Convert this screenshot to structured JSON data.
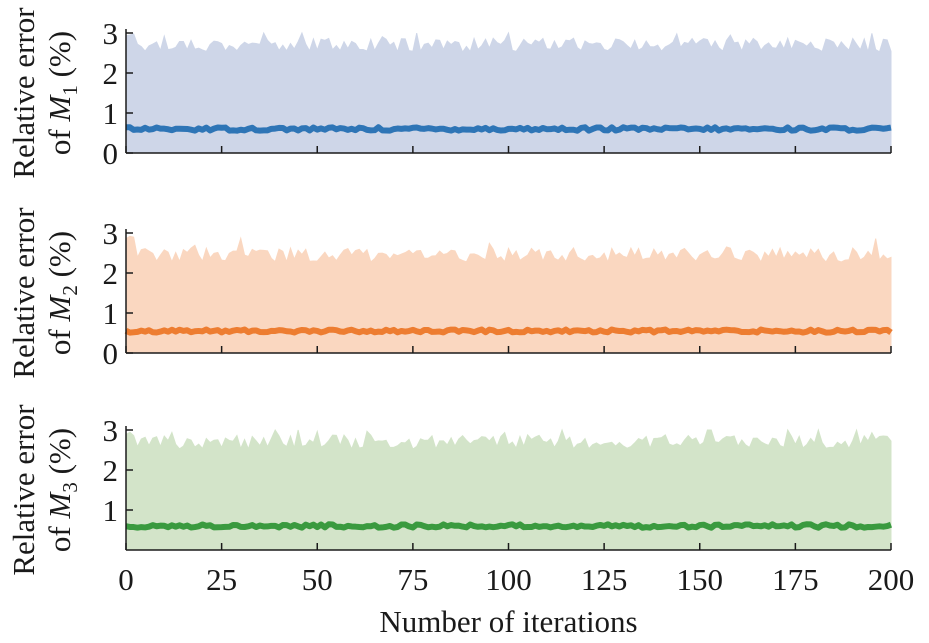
{
  "chart_data": [
    {
      "type": "line",
      "panel": 1,
      "ylabel": {
        "line1": "Relative error",
        "prefix": "of ",
        "symbol": "M",
        "subscript": "1",
        "suffix": " (%)"
      },
      "xlim": [
        0,
        200
      ],
      "ylim": [
        0,
        3
      ],
      "yticks": [
        0,
        1,
        2,
        3
      ],
      "grid": false,
      "colors": {
        "line": "#2e75b6",
        "band": "#ced6e8"
      },
      "series": [
        {
          "kind": "band",
          "lower": 0,
          "upper_mean": 2.7,
          "upper_min": 2.4,
          "upper_max": 3.0
        },
        {
          "kind": "line",
          "mean": 0.6,
          "min": 0.55,
          "max": 0.66
        }
      ]
    },
    {
      "type": "line",
      "panel": 2,
      "ylabel": {
        "line1": "Relative error",
        "prefix": "of ",
        "symbol": "M",
        "subscript": "2",
        "suffix": " (%)"
      },
      "xlim": [
        0,
        200
      ],
      "ylim": [
        0,
        3
      ],
      "yticks": [
        0,
        1,
        2,
        3
      ],
      "grid": false,
      "colors": {
        "line": "#ed7d31",
        "band": "#fad7c0"
      },
      "series": [
        {
          "kind": "band",
          "lower": 0,
          "upper_mean": 2.45,
          "upper_min": 2.25,
          "upper_max": 2.95
        },
        {
          "kind": "line",
          "mean": 0.55,
          "min": 0.5,
          "max": 0.6
        }
      ]
    },
    {
      "type": "line",
      "panel": 3,
      "ylabel": {
        "line1": "Relative error",
        "prefix": "of ",
        "symbol": "M",
        "subscript": "3",
        "suffix": " (%)"
      },
      "xlim": [
        0,
        200
      ],
      "ylim": [
        0,
        3
      ],
      "yticks": [
        1,
        2,
        3
      ],
      "xticks": [
        0,
        25,
        50,
        75,
        100,
        125,
        150,
        175,
        200
      ],
      "xlabel": "Number of iterations",
      "grid": false,
      "colors": {
        "line": "#3a9a3f",
        "band": "#d3e4c9"
      },
      "series": [
        {
          "kind": "band",
          "lower": 0,
          "upper_mean": 2.7,
          "upper_min": 2.35,
          "upper_max": 3.0
        },
        {
          "kind": "line",
          "mean": 0.6,
          "min": 0.55,
          "max": 0.66
        }
      ]
    }
  ]
}
